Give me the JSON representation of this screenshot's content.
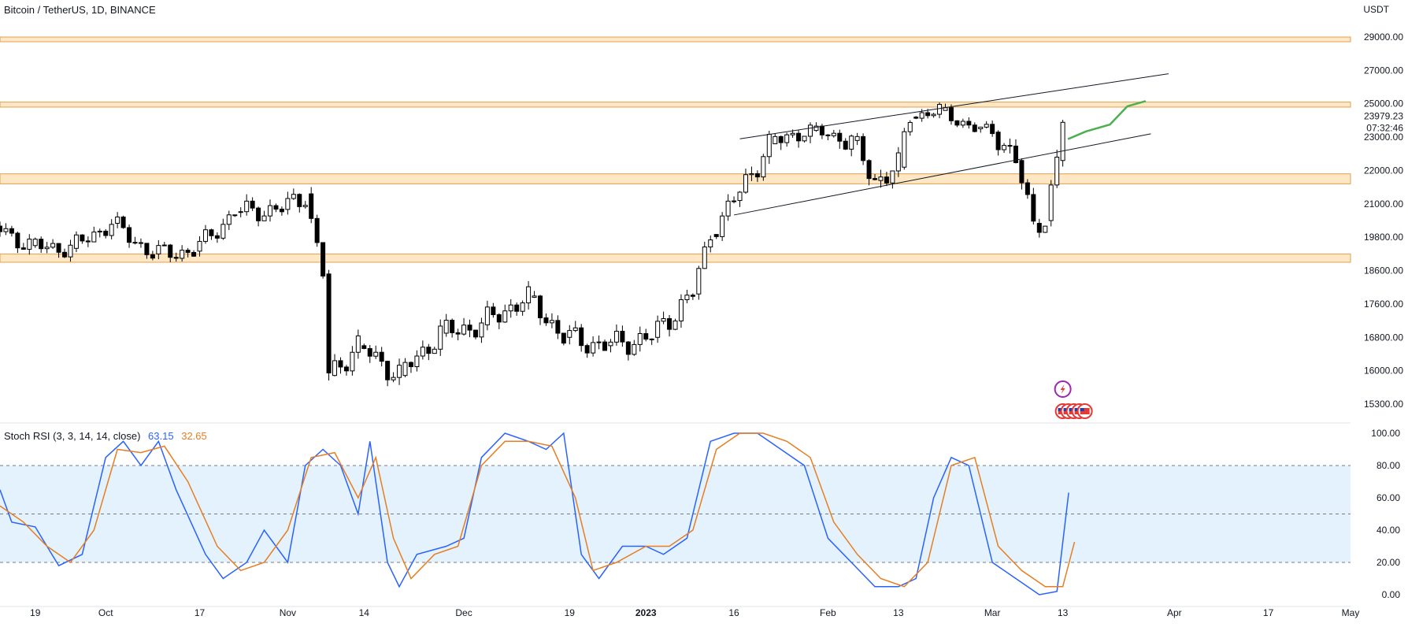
{
  "chart_data": [
    {
      "type": "candlestick",
      "title": "Bitcoin / TetherUS, 1D, BINANCE",
      "unit": "USDT",
      "y_ticks": [
        29000,
        27000,
        25000,
        23000,
        22000,
        21000,
        19800,
        18600,
        17600,
        16800,
        16000,
        15300
      ],
      "y_tick_labels": [
        "29000.00",
        "27000.00",
        "25000.00",
        "23000.00",
        "22000.00",
        "21000.00",
        "19800.00",
        "18600.00",
        "17600.00",
        "16800.00",
        "16000.00",
        "15300.00"
      ],
      "last_price": "23979.23",
      "countdown": "07:32:46",
      "x_labels": [
        "19",
        "Oct",
        "17",
        "Nov",
        "14",
        "Dec",
        "19",
        "2023",
        "16",
        "Feb",
        "13",
        "Mar",
        "13",
        "Apr",
        "17",
        "May"
      ],
      "x_label_dates": [
        "2022-09-19",
        "2022-10-01",
        "2022-10-17",
        "2022-11-01",
        "2022-11-14",
        "2022-12-01",
        "2022-12-19",
        "2023-01-01",
        "2023-01-16",
        "2023-02-01",
        "2023-02-13",
        "2023-03-01",
        "2023-03-13",
        "2023-04-01",
        "2023-04-17",
        "2023-05-01"
      ],
      "x_range": [
        "2022-09-13",
        "2023-05-01"
      ],
      "zones": [
        {
          "from": 28800,
          "to": 29000
        },
        {
          "from": 24800,
          "to": 25100
        },
        {
          "from": 21600,
          "to": 21900
        },
        {
          "from": 18900,
          "to": 19200
        }
      ],
      "channel_upper": {
        "start": [
          "2023-01-17",
          22950
        ],
        "end": [
          "2023-03-31",
          26800
        ]
      },
      "channel_lower": {
        "start": [
          "2023-01-16",
          20600
        ],
        "end": [
          "2023-03-28",
          23200
        ]
      },
      "projection": [
        [
          "2023-03-14",
          22950
        ],
        [
          "2023-03-17",
          23350
        ],
        [
          "2023-03-21",
          23750
        ],
        [
          "2023-03-24",
          24850
        ],
        [
          "2023-03-27",
          25150
        ]
      ],
      "candles": [
        {
          "date": "2022-09-13",
          "close": 20200
        },
        {
          "date": "2022-09-19",
          "close": 19500
        },
        {
          "date": "2022-09-26",
          "close": 19400
        },
        {
          "date": "2022-10-03",
          "close": 20300
        },
        {
          "date": "2022-10-10",
          "close": 19200
        },
        {
          "date": "2022-10-17",
          "close": 19300
        },
        {
          "date": "2022-10-24",
          "close": 20700
        },
        {
          "date": "2022-11-01",
          "close": 20800
        },
        {
          "date": "2022-11-05",
          "close": 21300
        },
        {
          "date": "2022-11-08",
          "close": 18500
        },
        {
          "date": "2022-11-09",
          "close": 15900
        },
        {
          "date": "2022-11-14",
          "close": 16600
        },
        {
          "date": "2022-11-21",
          "close": 15900
        },
        {
          "date": "2022-11-28",
          "close": 16900
        },
        {
          "date": "2022-12-05",
          "close": 17100
        },
        {
          "date": "2022-12-13",
          "close": 17800
        },
        {
          "date": "2022-12-19",
          "close": 16800
        },
        {
          "date": "2022-12-26",
          "close": 16600
        },
        {
          "date": "2023-01-03",
          "close": 16800
        },
        {
          "date": "2023-01-10",
          "close": 17900
        },
        {
          "date": "2023-01-13",
          "close": 19900
        },
        {
          "date": "2023-01-17",
          "close": 21100
        },
        {
          "date": "2023-01-23",
          "close": 22800
        },
        {
          "date": "2023-01-30",
          "close": 23400
        },
        {
          "date": "2023-02-06",
          "close": 22900
        },
        {
          "date": "2023-02-10",
          "close": 21700
        },
        {
          "date": "2023-02-14",
          "close": 22100
        },
        {
          "date": "2023-02-16",
          "close": 24200
        },
        {
          "date": "2023-02-21",
          "close": 24600
        },
        {
          "date": "2023-02-27",
          "close": 23500
        },
        {
          "date": "2023-03-02",
          "close": 23300
        },
        {
          "date": "2023-03-06",
          "close": 22300
        },
        {
          "date": "2023-03-09",
          "close": 20300
        },
        {
          "date": "2023-03-11",
          "close": 20400
        },
        {
          "date": "2023-03-13",
          "close": 22300
        },
        {
          "date": "2023-03-14",
          "close": 23979
        }
      ]
    },
    {
      "type": "line",
      "indicator": "Stoch RSI (3, 3, 14, 14, close)",
      "series": [
        {
          "name": "63.15",
          "color": "#2962ff",
          "values": [
            [
              "2022-09-13",
              65
            ],
            [
              "2022-09-15",
              45
            ],
            [
              "2022-09-19",
              42
            ],
            [
              "2022-09-23",
              18
            ],
            [
              "2022-09-27",
              25
            ],
            [
              "2022-10-01",
              85
            ],
            [
              "2022-10-04",
              95
            ],
            [
              "2022-10-07",
              80
            ],
            [
              "2022-10-10",
              95
            ],
            [
              "2022-10-13",
              65
            ],
            [
              "2022-10-18",
              25
            ],
            [
              "2022-10-21",
              10
            ],
            [
              "2022-10-25",
              20
            ],
            [
              "2022-10-28",
              40
            ],
            [
              "2022-11-01",
              20
            ],
            [
              "2022-11-04",
              80
            ],
            [
              "2022-11-07",
              90
            ],
            [
              "2022-11-10",
              80
            ],
            [
              "2022-11-13",
              50
            ],
            [
              "2022-11-15",
              95
            ],
            [
              "2022-11-18",
              20
            ],
            [
              "2022-11-20",
              5
            ],
            [
              "2022-11-23",
              25
            ],
            [
              "2022-11-28",
              30
            ],
            [
              "2022-12-01",
              35
            ],
            [
              "2022-12-04",
              85
            ],
            [
              "2022-12-08",
              100
            ],
            [
              "2022-12-12",
              95
            ],
            [
              "2022-12-15",
              90
            ],
            [
              "2022-12-18",
              100
            ],
            [
              "2022-12-21",
              25
            ],
            [
              "2022-12-24",
              10
            ],
            [
              "2022-12-28",
              30
            ],
            [
              "2023-01-01",
              30
            ],
            [
              "2023-01-04",
              25
            ],
            [
              "2023-01-08",
              35
            ],
            [
              "2023-01-12",
              95
            ],
            [
              "2023-01-16",
              100
            ],
            [
              "2023-01-20",
              100
            ],
            [
              "2023-01-24",
              90
            ],
            [
              "2023-01-28",
              80
            ],
            [
              "2023-02-01",
              35
            ],
            [
              "2023-02-05",
              20
            ],
            [
              "2023-02-09",
              5
            ],
            [
              "2023-02-13",
              5
            ],
            [
              "2023-02-16",
              10
            ],
            [
              "2023-02-19",
              60
            ],
            [
              "2023-02-22",
              85
            ],
            [
              "2023-02-25",
              80
            ],
            [
              "2023-03-01",
              20
            ],
            [
              "2023-03-05",
              10
            ],
            [
              "2023-03-09",
              0
            ],
            [
              "2023-03-12",
              2
            ],
            [
              "2023-03-14",
              63.15
            ]
          ]
        },
        {
          "name": "32.65",
          "color": "#e67e22",
          "values": [
            [
              "2022-09-13",
              55
            ],
            [
              "2022-09-17",
              45
            ],
            [
              "2022-09-21",
              30
            ],
            [
              "2022-09-25",
              20
            ],
            [
              "2022-09-29",
              40
            ],
            [
              "2022-10-03",
              90
            ],
            [
              "2022-10-07",
              88
            ],
            [
              "2022-10-11",
              92
            ],
            [
              "2022-10-15",
              70
            ],
            [
              "2022-10-20",
              30
            ],
            [
              "2022-10-24",
              15
            ],
            [
              "2022-10-28",
              20
            ],
            [
              "2022-11-01",
              40
            ],
            [
              "2022-11-05",
              85
            ],
            [
              "2022-11-09",
              88
            ],
            [
              "2022-11-13",
              60
            ],
            [
              "2022-11-16",
              85
            ],
            [
              "2022-11-19",
              35
            ],
            [
              "2022-11-22",
              10
            ],
            [
              "2022-11-26",
              25
            ],
            [
              "2022-11-30",
              30
            ],
            [
              "2022-12-04",
              80
            ],
            [
              "2022-12-08",
              95
            ],
            [
              "2022-12-12",
              95
            ],
            [
              "2022-12-16",
              92
            ],
            [
              "2022-12-20",
              60
            ],
            [
              "2022-12-23",
              15
            ],
            [
              "2022-12-27",
              20
            ],
            [
              "2023-01-01",
              30
            ],
            [
              "2023-01-05",
              30
            ],
            [
              "2023-01-09",
              40
            ],
            [
              "2023-01-13",
              90
            ],
            [
              "2023-01-17",
              100
            ],
            [
              "2023-01-21",
              100
            ],
            [
              "2023-01-25",
              95
            ],
            [
              "2023-01-29",
              85
            ],
            [
              "2023-02-02",
              45
            ],
            [
              "2023-02-06",
              25
            ],
            [
              "2023-02-10",
              10
            ],
            [
              "2023-02-14",
              5
            ],
            [
              "2023-02-18",
              20
            ],
            [
              "2023-02-22",
              80
            ],
            [
              "2023-02-26",
              85
            ],
            [
              "2023-03-02",
              30
            ],
            [
              "2023-03-06",
              15
            ],
            [
              "2023-03-10",
              5
            ],
            [
              "2023-03-13",
              5
            ],
            [
              "2023-03-15",
              32.65
            ]
          ]
        }
      ],
      "y_ticks": [
        100,
        80,
        60,
        40,
        20,
        0
      ],
      "y_tick_labels": [
        "100.00",
        "80.00",
        "60.00",
        "40.00",
        "20.00",
        "0.00"
      ],
      "band": [
        20,
        80
      ],
      "midline": 50,
      "ylim": [
        0,
        100
      ]
    }
  ],
  "colors": {
    "up": "#ffffff",
    "down": "#000000",
    "zone": "#fde7c4",
    "zone_border": "#e0a050",
    "band": "#e3f2fd",
    "projection": "#4caf50"
  }
}
